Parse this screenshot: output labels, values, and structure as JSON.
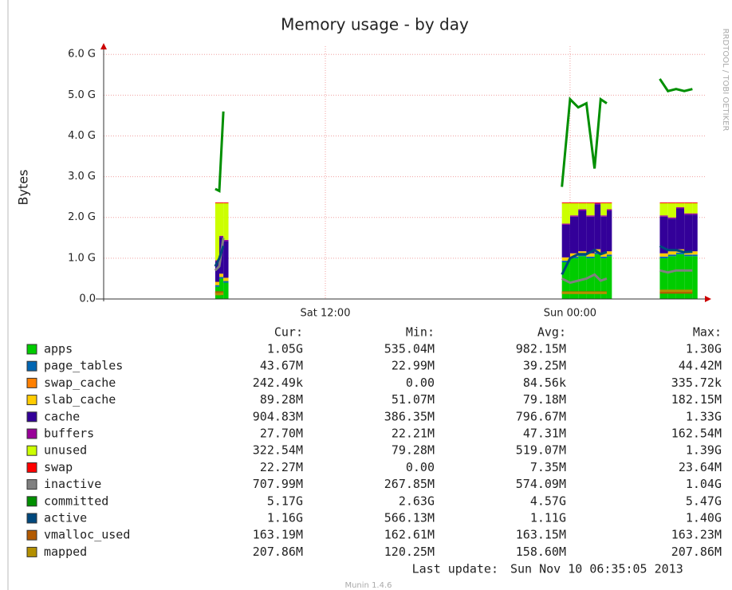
{
  "chart_data": {
    "type": "stacked_area_line",
    "title": "Memory usage - by day",
    "y_label": "Bytes",
    "side_label": "RRDTOOL / TOBI OETIKER",
    "stat_headers": [
      "Cur:",
      "Min:",
      "Avg:",
      "Max:"
    ],
    "last_update_label": "Last update:",
    "last_update": "Sun Nov 10 06:35:05 2013",
    "footer": "Munin 1.4.6",
    "grid": true,
    "xlim": [
      1.13,
      30.65
    ],
    "xticks": [
      {
        "value": 12,
        "label": "Sat 12:00"
      },
      {
        "value": 24,
        "label": "Sun 00:00"
      }
    ],
    "ylim": [
      0,
      6.2
    ],
    "yticks": [
      {
        "value": 0,
        "label": "0.0"
      },
      {
        "value": 1,
        "label": "1.0 G"
      },
      {
        "value": 2,
        "label": "2.0 G"
      },
      {
        "value": 3,
        "label": "3.0 G"
      },
      {
        "value": 4,
        "label": "4.0 G"
      },
      {
        "value": 5,
        "label": "5.0 G"
      },
      {
        "value": 6,
        "label": "6.0 G"
      }
    ],
    "x": [
      6.6,
      6.8,
      7.0,
      15,
      23.6,
      24.0,
      24.4,
      24.8,
      25.2,
      25.5,
      25.8,
      27,
      28.4,
      28.8,
      29.2,
      29.6,
      30.0
    ],
    "series": [
      {
        "name": "apps",
        "color": "#00cc00",
        "stack": true,
        "values": [
          0.3,
          0.5,
          0.4,
          null,
          0.9,
          1.0,
          1.05,
          1.0,
          1.1,
          1.0,
          1.05,
          null,
          1.0,
          1.05,
          1.1,
          1.05,
          1.05
        ],
        "stats": [
          "1.05G",
          "535.04M",
          "982.15M",
          "1.30G"
        ]
      },
      {
        "name": "page_tables",
        "color": "#0066b3",
        "stack": true,
        "values": [
          0.04,
          0.04,
          0.04,
          null,
          0.04,
          0.04,
          0.04,
          0.04,
          0.04,
          0.04,
          0.04,
          null,
          0.04,
          0.04,
          0.04,
          0.04,
          0.04
        ],
        "stats": [
          "43.67M",
          "22.99M",
          "39.25M",
          "44.42M"
        ]
      },
      {
        "name": "swap_cache",
        "color": "#ff8000",
        "stack": true,
        "values": [
          0,
          0,
          0,
          null,
          0,
          0,
          0,
          0,
          0,
          0,
          0,
          null,
          0,
          0,
          0,
          0,
          0
        ],
        "stats": [
          "242.49k",
          "0.00",
          "84.56k",
          "335.72k"
        ]
      },
      {
        "name": "slab_cache",
        "color": "#ffcc00",
        "stack": true,
        "values": [
          0.08,
          0.08,
          0.08,
          null,
          0.08,
          0.08,
          0.08,
          0.08,
          0.08,
          0.08,
          0.08,
          null,
          0.08,
          0.08,
          0.08,
          0.08,
          0.08
        ],
        "stats": [
          "89.28M",
          "51.07M",
          "79.18M",
          "182.15M"
        ]
      },
      {
        "name": "cache",
        "color": "#330099",
        "stack": true,
        "values": [
          0.5,
          0.9,
          0.9,
          null,
          0.8,
          0.9,
          1.0,
          0.9,
          1.1,
          0.9,
          1.0,
          null,
          0.9,
          0.8,
          1.0,
          0.9,
          0.9
        ],
        "stats": [
          "904.83M",
          "386.35M",
          "796.67M",
          "1.33G"
        ]
      },
      {
        "name": "buffers",
        "color": "#990099",
        "stack": true,
        "values": [
          0.03,
          0.03,
          0.03,
          null,
          0.03,
          0.03,
          0.03,
          0.03,
          0.03,
          0.03,
          0.03,
          null,
          0.03,
          0.03,
          0.03,
          0.03,
          0.03
        ],
        "stats": [
          "27.70M",
          "22.21M",
          "47.31M",
          "162.54M"
        ]
      },
      {
        "name": "unused",
        "color": "#ccff00",
        "stack": true,
        "values": [
          1.4,
          0.8,
          0.9,
          null,
          0.5,
          0.3,
          0.15,
          0.3,
          0,
          0.3,
          0.15,
          null,
          0.3,
          0.35,
          0.1,
          0.25,
          0.25
        ],
        "stats": [
          "322.54M",
          "79.28M",
          "519.07M",
          "1.39G"
        ]
      },
      {
        "name": "swap",
        "color": "#ff0000",
        "stack": true,
        "values": [
          0.02,
          0.02,
          0.02,
          null,
          0.02,
          0.02,
          0.02,
          0.02,
          0.02,
          0.02,
          0.02,
          null,
          0.02,
          0.02,
          0.02,
          0.02,
          0.02
        ],
        "stats": [
          "22.27M",
          "0.00",
          "7.35M",
          "23.64M"
        ]
      },
      {
        "name": "inactive",
        "color": "#808080",
        "stack": false,
        "values": [
          0.7,
          0.8,
          1.5,
          null,
          0.5,
          0.4,
          0.45,
          0.5,
          0.6,
          0.45,
          0.5,
          null,
          0.7,
          0.65,
          0.7,
          0.7,
          0.7
        ],
        "stats": [
          "707.99M",
          "267.85M",
          "574.09M",
          "1.04G"
        ]
      },
      {
        "name": "committed",
        "color": "#008f00",
        "stack": false,
        "values": [
          2.7,
          2.65,
          4.6,
          null,
          2.75,
          4.9,
          4.7,
          4.8,
          3.2,
          4.9,
          4.8,
          null,
          5.4,
          5.1,
          5.15,
          5.1,
          5.15
        ],
        "stats": [
          "5.17G",
          "2.63G",
          "4.57G",
          "5.47G"
        ]
      },
      {
        "name": "active",
        "color": "#00487d",
        "stack": false,
        "values": [
          0.8,
          1.0,
          1.3,
          null,
          0.6,
          1.0,
          1.1,
          1.1,
          1.2,
          1.1,
          1.15,
          null,
          1.3,
          1.2,
          1.2,
          1.15,
          1.16
        ],
        "stats": [
          "1.16G",
          "566.13M",
          "1.11G",
          "1.40G"
        ]
      },
      {
        "name": "vmalloc_used",
        "color": "#b35a00",
        "stack": false,
        "values": [
          0.16,
          0.16,
          0.16,
          null,
          0.16,
          0.16,
          0.16,
          0.16,
          0.16,
          0.16,
          0.16,
          null,
          0.16,
          0.16,
          0.16,
          0.16,
          0.16
        ],
        "stats": [
          "163.19M",
          "162.61M",
          "163.15M",
          "163.23M"
        ]
      },
      {
        "name": "mapped",
        "color": "#b38f00",
        "stack": false,
        "values": [
          0.12,
          0.12,
          0.13,
          null,
          0.15,
          0.15,
          0.15,
          0.15,
          0.15,
          0.15,
          0.15,
          null,
          0.2,
          0.2,
          0.2,
          0.2,
          0.2
        ],
        "stats": [
          "207.86M",
          "120.25M",
          "158.60M",
          "207.86M"
        ]
      }
    ]
  }
}
